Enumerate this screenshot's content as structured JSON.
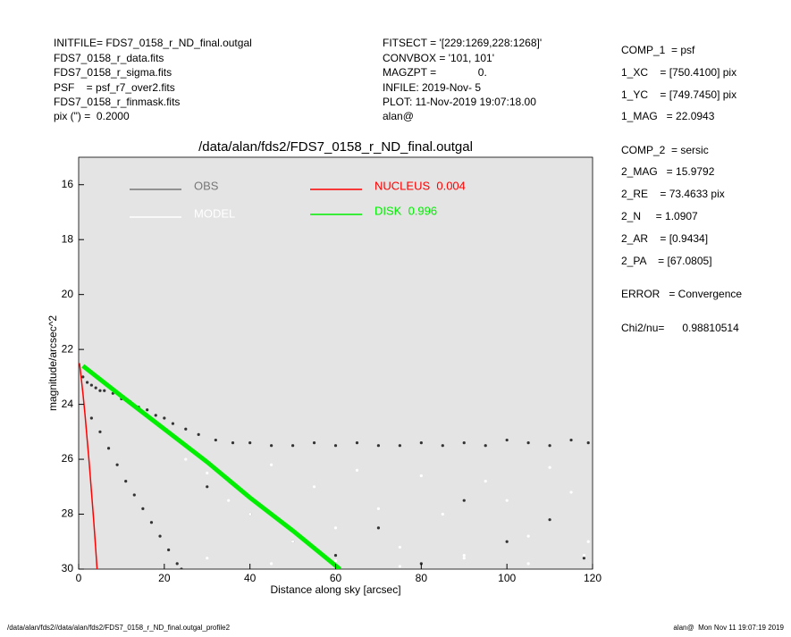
{
  "header": {
    "left": [
      "INITFILE= FDS7_0158_r_ND_final.outgal",
      "FDS7_0158_r_data.fits",
      "FDS7_0158_r_sigma.fits",
      "PSF    = psf_r7_over2.fits",
      "FDS7_0158_r_finmask.fits",
      "pix (\") =  0.2000"
    ],
    "middle": [
      "FITSECT = '[229:1269,228:1268]'",
      "CONVBOX = '101, 101'",
      "MAGZPT =              0.",
      "INFILE: 2019-Nov- 5",
      "PLOT: 11-Nov-2019 19:07:18.00",
      "alan@"
    ],
    "right": [
      "COMP_1  = psf",
      "1_XC    = [750.4100] pix",
      "1_YC    = [749.7450] pix",
      "1_MAG   = 22.0943",
      "COMP_2  = sersic",
      "2_MAG   = 15.9792",
      "2_RE    = 73.4633 pix",
      "2_N     = 1.0907",
      "2_AR    = [0.9434]",
      "2_PA    = [67.0805]",
      "ERROR   = Convergence",
      "Chi2/nu=      0.98810514"
    ]
  },
  "footer": {
    "left": "/data/alan/fds2//data/alan/fds2/FDS7_0158_r_ND_final.outgal_profile2",
    "right": "alan@  Mon Nov 11 19:07:19 2019"
  },
  "chart_data": {
    "type": "scatter",
    "title": "/data/alan/fds2/FDS7_0158_r_ND_final.outgal",
    "x_label": "Distance along sky [arcsec]",
    "y_label": "magnitude/arcsec^2",
    "xlim": [
      0,
      120
    ],
    "xticks": [
      0,
      20,
      40,
      60,
      80,
      100,
      120
    ],
    "ylim": [
      15,
      30
    ],
    "y_inverted": true,
    "yticks": [
      16,
      18,
      20,
      22,
      24,
      26,
      28,
      30
    ],
    "background": "#e4e4e4",
    "series": [
      {
        "name": "OBS",
        "color": "#777777",
        "point_color": "#333333",
        "style": "points",
        "x": [
          1,
          2,
          3,
          4,
          5,
          6,
          8,
          10,
          12,
          14,
          16,
          18,
          20,
          22,
          25,
          28,
          32,
          36,
          40,
          45,
          50,
          55,
          60,
          65,
          70,
          75,
          80,
          85,
          90,
          95,
          100,
          105,
          110,
          115,
          119,
          3,
          5,
          7,
          9,
          11,
          13,
          15,
          17,
          19,
          21,
          23,
          24,
          30,
          40,
          50,
          60,
          70,
          80,
          90,
          100,
          110,
          118
        ],
        "values": [
          23.0,
          23.2,
          23.3,
          23.4,
          23.5,
          23.5,
          23.6,
          23.8,
          23.9,
          24.1,
          24.2,
          24.4,
          24.5,
          24.7,
          24.9,
          25.1,
          25.3,
          25.4,
          25.4,
          25.5,
          25.5,
          25.4,
          25.5,
          25.4,
          25.5,
          25.5,
          25.4,
          25.5,
          25.4,
          25.5,
          25.3,
          25.4,
          25.5,
          25.3,
          25.4,
          24.5,
          25.0,
          25.6,
          26.2,
          26.8,
          27.3,
          27.8,
          28.3,
          28.8,
          29.3,
          29.8,
          30.0,
          27.0,
          28.0,
          29.0,
          29.5,
          28.5,
          29.8,
          27.5,
          29.0,
          28.2,
          29.6
        ]
      },
      {
        "name": "MODEL",
        "color": "#ffffff",
        "point_color": "#ffffff",
        "style": "points",
        "x": [
          25,
          30,
          35,
          40,
          45,
          50,
          55,
          60,
          65,
          70,
          75,
          80,
          85,
          90,
          95,
          100,
          105,
          110,
          115,
          119,
          30,
          45,
          60,
          75,
          90,
          105,
          118
        ],
        "values": [
          26.0,
          26.5,
          27.5,
          28.0,
          26.2,
          29.0,
          27.0,
          28.5,
          26.4,
          27.8,
          29.2,
          26.6,
          28.0,
          29.5,
          26.8,
          27.5,
          28.8,
          26.3,
          27.2,
          29.0,
          29.6,
          29.8,
          29.7,
          29.9,
          29.6,
          29.8,
          29.5
        ]
      },
      {
        "name": "NUCLEUS  0.004",
        "color": "#ff0000",
        "style": "line",
        "width": 1.5,
        "x": [
          0.2,
          0.5,
          1,
          1.5,
          2,
          2.5,
          3,
          3.5,
          4,
          4.3
        ],
        "values": [
          22.5,
          22.9,
          23.6,
          24.4,
          25.3,
          26.2,
          27.2,
          28.2,
          29.3,
          30
        ]
      },
      {
        "name": "DISK  0.996",
        "color": "#00ee00",
        "style": "line",
        "width": 5,
        "x": [
          1,
          10,
          20,
          30,
          40,
          50,
          61
        ],
        "values": [
          22.6,
          23.7,
          24.9,
          26.1,
          27.4,
          28.6,
          30.0
        ]
      }
    ]
  }
}
